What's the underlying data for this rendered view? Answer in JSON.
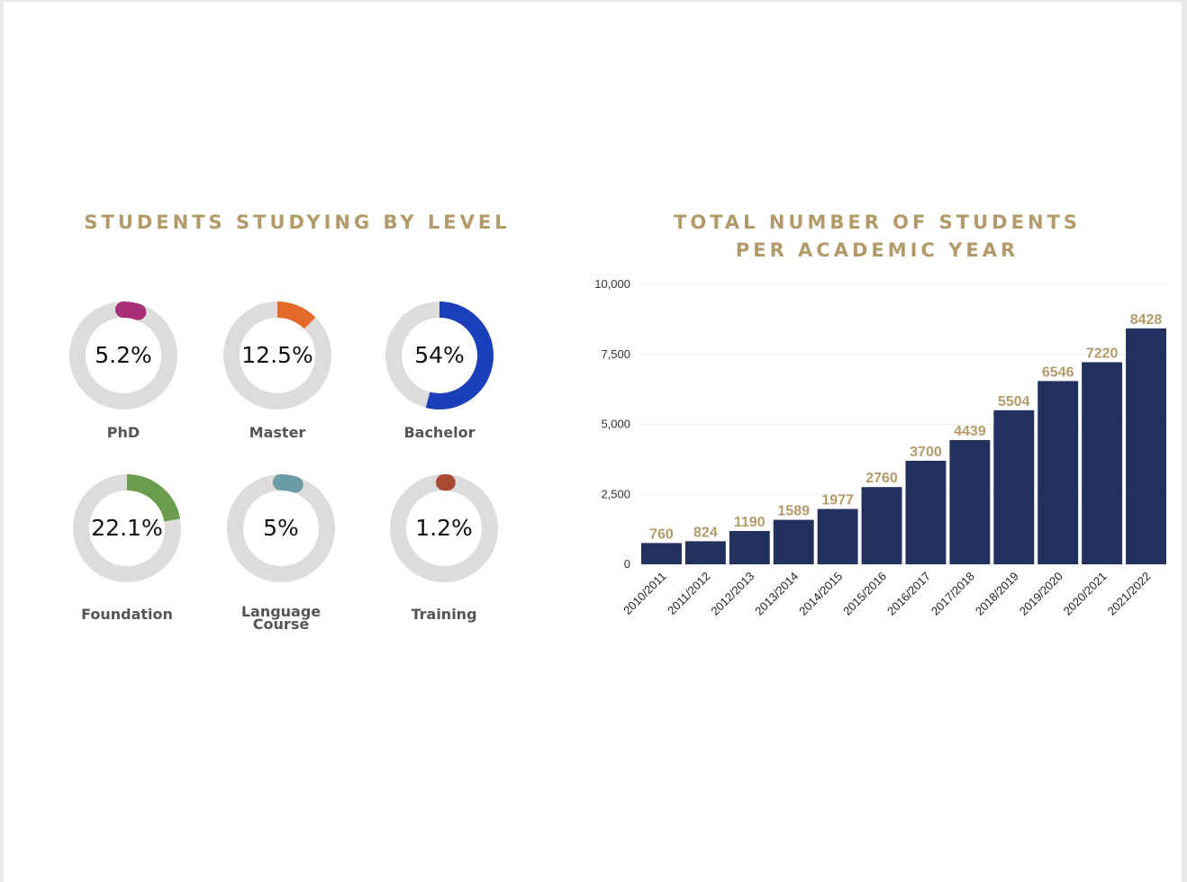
{
  "level_section": {
    "title": "STUDENTS STUDYING BY LEVEL",
    "donuts": [
      {
        "label": "PhD",
        "value_text": "5.2%",
        "value": 5.2,
        "color": "#a82e78"
      },
      {
        "label": "Master",
        "value_text": "12.5%",
        "value": 12.5,
        "color": "#e46a2c"
      },
      {
        "label": "Bachelor",
        "value_text": "54%",
        "value": 54,
        "color": "#1c3fbc"
      },
      {
        "label": "Foundation",
        "value_text": "22.1%",
        "value": 22.1,
        "color": "#6a9e4e"
      },
      {
        "label_line1": "Language",
        "label_line2": "Course",
        "value_text": "5%",
        "value": 5,
        "color": "#6a9aa4"
      },
      {
        "label": "Training",
        "value_text": "1.2%",
        "value": 1.2,
        "color": "#a84a32"
      }
    ],
    "track_color": "#dcdcdc"
  },
  "year_section": {
    "title_line1": "TOTAL NUMBER OF STUDENTS",
    "title_line2": "PER ACADEMIC YEAR"
  },
  "colors": {
    "title": "#b39a6a",
    "bar": "#22305e",
    "bar_label": "#b39a6a"
  },
  "chart_data": [
    {
      "type": "pie",
      "categories": [
        "PhD",
        "Master",
        "Bachelor",
        "Foundation",
        "Language Course",
        "Training"
      ],
      "values": [
        5.2,
        12.5,
        54,
        22.1,
        5,
        1.2
      ],
      "title": "STUDENTS STUDYING BY LEVEL"
    },
    {
      "type": "bar",
      "categories": [
        "2010/2011",
        "2011/2012",
        "2012/2013",
        "2013/2014",
        "2014/2015",
        "2015/2016",
        "2016/2017",
        "2017/2018",
        "2018/2019",
        "2019/2020",
        "2020/2021",
        "2021/2022"
      ],
      "values": [
        760,
        824,
        1190,
        1589,
        1977,
        2760,
        3700,
        4439,
        5504,
        6546,
        7220,
        8428
      ],
      "title": "TOTAL NUMBER OF STUDENTS PER ACADEMIC YEAR",
      "xlabel": "",
      "ylabel": "",
      "ylim": [
        0,
        10000
      ],
      "yticks": [
        "0",
        "2,500",
        "5,000",
        "7,500",
        "10,000"
      ],
      "grid": true
    }
  ]
}
